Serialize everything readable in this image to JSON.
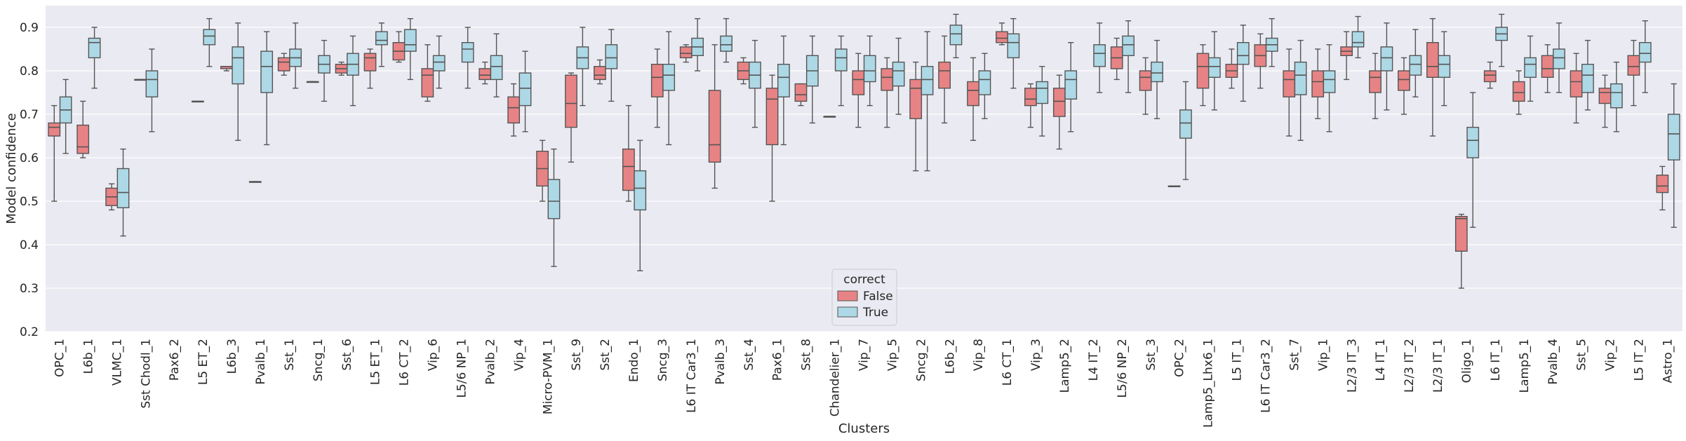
{
  "chart_data": {
    "type": "box",
    "title": "",
    "xlabel": "Clusters",
    "ylabel": "Model confidence",
    "ylim": [
      0.2,
      0.95
    ],
    "yticks": [
      0.2,
      0.3,
      0.4,
      0.5,
      0.6,
      0.7,
      0.8,
      0.9
    ],
    "ytick_labels": [
      "0.2",
      "0.3",
      "0.4",
      "0.5",
      "0.6",
      "0.7",
      "0.8",
      "0.9"
    ],
    "grid": true,
    "legend": {
      "title": "correct",
      "position": "bottom-center",
      "entries": [
        "False",
        "True"
      ]
    },
    "series": [
      {
        "name": "False",
        "color": "#e78384"
      },
      {
        "name": "True",
        "color": "#add8e6"
      }
    ],
    "categories": [
      "OPC_1",
      "L6b_1",
      "VLMC_1",
      "Sst Chodl_1",
      "Pax6_2",
      "L5 ET_2",
      "L6b_3",
      "Pvalb_1",
      "Sst_1",
      "Sncg_1",
      "Sst_6",
      "L5 ET_1",
      "L6 CT_2",
      "Vip_6",
      "L5/6 NP_1",
      "Pvalb_2",
      "Vip_4",
      "Micro-PVM_1",
      "Sst_9",
      "Sst_2",
      "Endo_1",
      "Sncg_3",
      "L6 IT Car3_1",
      "Pvalb_3",
      "Sst_4",
      "Pax6_1",
      "Sst_8",
      "Chandelier_1",
      "Vip_7",
      "Vip_5",
      "Sncg_2",
      "L6b_2",
      "Vip_8",
      "L6 CT_1",
      "Vip_3",
      "Lamp5_2",
      "L4 IT_2",
      "L5/6 NP_2",
      "Sst_3",
      "OPC_2",
      "Lamp5_Lhx6_1",
      "L5 IT_1",
      "L6 IT Car3_2",
      "Sst_7",
      "Vip_1",
      "L2/3 IT_3",
      "L4 IT_1",
      "L2/3 IT_2",
      "L2/3 IT_1",
      "Oligo_1",
      "L6 IT_1",
      "Lamp5_1",
      "Pvalb_4",
      "Sst_5",
      "Vip_2",
      "L5 IT_2",
      "Astro_1"
    ],
    "boxes": [
      [
        [
          0.5,
          0.65,
          0.67,
          0.68,
          0.72
        ],
        [
          0.61,
          0.68,
          0.71,
          0.74,
          0.78
        ]
      ],
      [
        [
          0.6,
          0.61,
          0.625,
          0.675,
          0.73
        ],
        [
          0.76,
          0.83,
          0.865,
          0.875,
          0.9
        ]
      ],
      [
        [
          0.48,
          0.49,
          0.51,
          0.53,
          0.54
        ],
        [
          0.42,
          0.485,
          0.52,
          0.575,
          0.62
        ]
      ],
      [
        [
          0.78,
          0.78,
          0.78,
          0.78,
          0.78
        ],
        [
          0.66,
          0.74,
          0.78,
          0.8,
          0.85
        ]
      ],
      null,
      [
        [
          0.73,
          0.73,
          0.73,
          0.73,
          0.73
        ],
        [
          0.81,
          0.86,
          0.88,
          0.895,
          0.92
        ]
      ],
      [
        [
          0.8,
          0.805,
          0.81,
          0.81,
          0.81
        ],
        [
          0.64,
          0.77,
          0.83,
          0.855,
          0.91
        ]
      ],
      [
        [
          0.545,
          0.545,
          0.545,
          0.545,
          0.545
        ],
        [
          0.63,
          0.75,
          0.81,
          0.845,
          0.89
        ]
      ],
      [
        [
          0.79,
          0.8,
          0.82,
          0.83,
          0.84
        ],
        [
          0.76,
          0.81,
          0.83,
          0.85,
          0.91
        ]
      ],
      [
        [
          0.775,
          0.775,
          0.775,
          0.775,
          0.775
        ],
        [
          0.73,
          0.795,
          0.815,
          0.835,
          0.87
        ]
      ],
      [
        [
          0.79,
          0.795,
          0.805,
          0.815,
          0.82
        ],
        [
          0.72,
          0.79,
          0.815,
          0.84,
          0.88
        ]
      ],
      [
        [
          0.76,
          0.8,
          0.83,
          0.84,
          0.85
        ],
        [
          0.81,
          0.86,
          0.87,
          0.89,
          0.91
        ]
      ],
      [
        [
          0.82,
          0.825,
          0.845,
          0.865,
          0.89
        ],
        [
          0.78,
          0.845,
          0.86,
          0.895,
          0.92
        ]
      ],
      [
        [
          0.73,
          0.74,
          0.79,
          0.805,
          0.86
        ],
        [
          0.76,
          0.8,
          0.82,
          0.835,
          0.88
        ]
      ],
      [
        [
          null
        ],
        [
          0.76,
          0.82,
          0.85,
          0.865,
          0.9
        ]
      ],
      [
        [
          0.77,
          0.78,
          0.79,
          0.805,
          0.82
        ],
        [
          0.74,
          0.78,
          0.81,
          0.835,
          0.885
        ]
      ],
      [
        [
          0.65,
          0.68,
          0.715,
          0.74,
          0.77
        ],
        [
          0.66,
          0.72,
          0.76,
          0.795,
          0.845
        ]
      ],
      [
        [
          0.5,
          0.535,
          0.575,
          0.615,
          0.64
        ],
        [
          0.35,
          0.46,
          0.5,
          0.55,
          0.62
        ]
      ],
      [
        [
          0.59,
          0.67,
          0.725,
          0.79,
          0.795
        ],
        [
          0.72,
          0.805,
          0.83,
          0.855,
          0.9
        ]
      ],
      [
        [
          0.77,
          0.78,
          0.79,
          0.81,
          0.825
        ],
        [
          0.73,
          0.805,
          0.83,
          0.86,
          0.895
        ]
      ],
      [
        [
          0.5,
          0.525,
          0.58,
          0.62,
          0.72
        ],
        [
          0.34,
          0.48,
          0.53,
          0.57,
          0.64
        ]
      ],
      [
        [
          0.67,
          0.74,
          0.785,
          0.815,
          0.85
        ],
        [
          0.63,
          0.755,
          0.79,
          0.815,
          0.89
        ]
      ],
      [
        [
          0.82,
          0.83,
          0.84,
          0.855,
          0.86
        ],
        [
          0.8,
          0.835,
          0.855,
          0.875,
          0.92
        ]
      ],
      [
        [
          0.53,
          0.59,
          0.63,
          0.755,
          0.86
        ],
        [
          0.82,
          0.845,
          0.86,
          0.88,
          0.92
        ]
      ],
      [
        [
          0.77,
          0.78,
          0.8,
          0.82,
          0.83
        ],
        [
          0.67,
          0.76,
          0.79,
          0.82,
          0.87
        ]
      ],
      [
        [
          0.5,
          0.63,
          0.735,
          0.76,
          0.79
        ],
        [
          0.63,
          0.74,
          0.785,
          0.815,
          0.88
        ]
      ],
      [
        [
          0.72,
          0.73,
          0.745,
          0.77,
          0.77
        ],
        [
          0.68,
          0.765,
          0.8,
          0.835,
          0.88
        ]
      ],
      [
        [
          0.695,
          0.695,
          0.695,
          0.695,
          0.695
        ],
        [
          0.72,
          0.8,
          0.83,
          0.85,
          0.88
        ]
      ],
      [
        [
          0.67,
          0.745,
          0.78,
          0.8,
          0.84
        ],
        [
          0.72,
          0.775,
          0.8,
          0.835,
          0.88
        ]
      ],
      [
        [
          0.67,
          0.755,
          0.785,
          0.805,
          0.83
        ],
        [
          0.7,
          0.765,
          0.8,
          0.82,
          0.875
        ]
      ],
      [
        [
          0.57,
          0.69,
          0.76,
          0.78,
          0.82
        ],
        [
          0.57,
          0.745,
          0.78,
          0.81,
          0.89
        ]
      ],
      [
        [
          0.68,
          0.76,
          0.8,
          0.82,
          0.88
        ],
        [
          0.83,
          0.86,
          0.885,
          0.905,
          0.93
        ]
      ],
      [
        [
          0.64,
          0.72,
          0.755,
          0.775,
          0.83
        ],
        [
          0.69,
          0.745,
          0.78,
          0.8,
          0.84
        ]
      ],
      [
        [
          0.86,
          0.865,
          0.875,
          0.89,
          0.91
        ],
        [
          0.76,
          0.83,
          0.865,
          0.885,
          0.92
        ]
      ],
      [
        [
          0.67,
          0.72,
          0.735,
          0.76,
          0.77
        ],
        [
          0.65,
          0.725,
          0.76,
          0.775,
          0.81
        ]
      ],
      [
        [
          0.62,
          0.695,
          0.73,
          0.76,
          0.79
        ],
        [
          0.66,
          0.735,
          0.78,
          0.8,
          0.865
        ]
      ],
      [
        null,
        [
          0.75,
          0.81,
          0.84,
          0.86,
          0.91
        ]
      ],
      [
        [
          0.78,
          0.805,
          0.83,
          0.855,
          0.875
        ],
        [
          0.75,
          0.835,
          0.86,
          0.88,
          0.915
        ]
      ],
      [
        [
          0.7,
          0.755,
          0.785,
          0.8,
          0.83
        ],
        [
          0.69,
          0.775,
          0.795,
          0.82,
          0.87
        ]
      ],
      [
        [
          0.535,
          0.535,
          0.535,
          0.535,
          0.535
        ],
        [
          0.55,
          0.645,
          0.68,
          0.71,
          0.775
        ]
      ],
      [
        [
          0.72,
          0.76,
          0.81,
          0.84,
          0.86
        ],
        [
          0.71,
          0.785,
          0.81,
          0.83,
          0.89
        ]
      ],
      [
        [
          0.76,
          0.785,
          0.8,
          0.815,
          0.85
        ],
        [
          0.73,
          0.815,
          0.835,
          0.865,
          0.905
        ]
      ],
      [
        [
          0.76,
          0.81,
          0.835,
          0.86,
          0.885
        ],
        [
          0.81,
          0.845,
          0.86,
          0.875,
          0.92
        ]
      ],
      [
        [
          0.65,
          0.74,
          0.78,
          0.8,
          0.85
        ],
        [
          0.64,
          0.745,
          0.79,
          0.82,
          0.87
        ]
      ],
      [
        [
          0.69,
          0.74,
          0.775,
          0.8,
          0.85
        ],
        [
          0.66,
          0.75,
          0.78,
          0.8,
          0.86
        ]
      ],
      [
        [
          0.78,
          0.835,
          0.845,
          0.855,
          0.89
        ],
        [
          0.83,
          0.855,
          0.865,
          0.89,
          0.925
        ]
      ],
      [
        [
          0.69,
          0.75,
          0.785,
          0.8,
          0.84
        ],
        [
          0.71,
          0.8,
          0.83,
          0.855,
          0.91
        ]
      ],
      [
        [
          0.7,
          0.755,
          0.78,
          0.8,
          0.83
        ],
        [
          0.74,
          0.79,
          0.815,
          0.835,
          0.895
        ]
      ],
      [
        [
          0.65,
          0.785,
          0.81,
          0.865,
          0.92
        ],
        [
          0.72,
          0.785,
          0.815,
          0.835,
          0.89
        ]
      ],
      [
        [
          0.3,
          0.385,
          0.46,
          0.465,
          0.47
        ],
        [
          0.44,
          0.6,
          0.64,
          0.67,
          0.75
        ]
      ],
      [
        [
          0.76,
          0.775,
          0.79,
          0.8,
          0.82
        ],
        [
          0.81,
          0.87,
          0.885,
          0.9,
          0.93
        ]
      ],
      [
        [
          0.7,
          0.73,
          0.75,
          0.775,
          0.8
        ],
        [
          0.73,
          0.785,
          0.815,
          0.83,
          0.88
        ]
      ],
      [
        [
          0.75,
          0.785,
          0.805,
          0.835,
          0.86
        ],
        [
          0.75,
          0.805,
          0.83,
          0.85,
          0.91
        ]
      ],
      [
        [
          0.68,
          0.74,
          0.775,
          0.8,
          0.84
        ],
        [
          0.71,
          0.75,
          0.79,
          0.815,
          0.87
        ]
      ],
      [
        [
          0.67,
          0.725,
          0.75,
          0.76,
          0.79
        ],
        [
          0.66,
          0.715,
          0.75,
          0.77,
          0.82
        ]
      ],
      [
        [
          0.72,
          0.79,
          0.81,
          0.835,
          0.87
        ],
        [
          0.75,
          0.82,
          0.84,
          0.865,
          0.915
        ]
      ],
      [
        [
          0.48,
          0.52,
          0.535,
          0.56,
          0.58
        ],
        [
          0.44,
          0.595,
          0.655,
          0.7,
          0.77
        ]
      ]
    ]
  }
}
